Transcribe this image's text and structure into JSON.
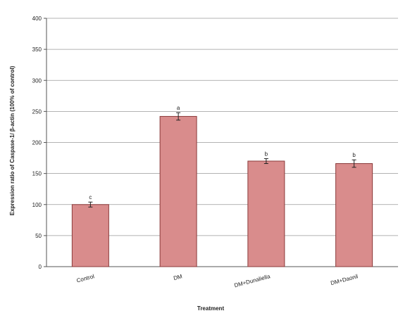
{
  "chart_data": {
    "type": "bar",
    "title": "",
    "xlabel": "Treatment",
    "ylabel": "Expression ratio of Caspase-1/ β-actin (100% of control)",
    "categories": [
      "Control",
      "DM",
      "DM+Dunaliella",
      "DM+Daonil"
    ],
    "values": [
      100,
      242,
      170,
      166
    ],
    "errors": [
      4,
      6,
      4,
      6
    ],
    "significance": [
      "c",
      "a",
      "b",
      "b"
    ],
    "ylim": [
      0,
      400
    ],
    "yticks": [
      0,
      50,
      100,
      150,
      200,
      250,
      300,
      350,
      400
    ],
    "grid": true,
    "legend": "none",
    "colors": {
      "bar_fill": "#d98c8c",
      "bar_stroke": "#8b3a3a",
      "grid": "#9a9a9a",
      "axis": "#555555"
    }
  }
}
